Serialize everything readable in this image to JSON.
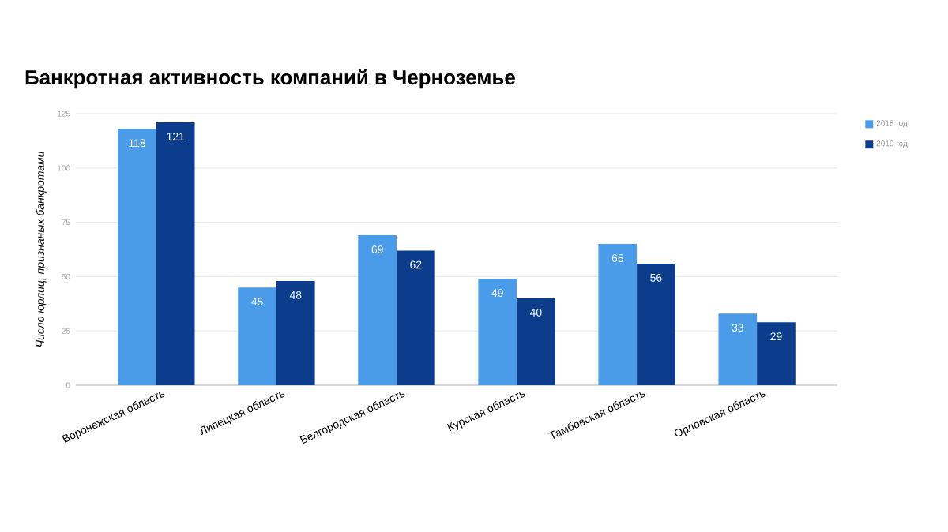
{
  "chart_data": {
    "type": "bar",
    "title": "Банкротная активность компаний в Черноземье",
    "ylabel": "Число юрлиц,  признаных банкротами",
    "categories": [
      "Воронежская область",
      "Липецкая область",
      "Белгородская область",
      "Курская область",
      "Тамбовская область",
      "Орловская область"
    ],
    "series": [
      {
        "name": "2018 год",
        "color": "#4a9be8",
        "values": [
          118,
          45,
          69,
          49,
          65,
          33
        ]
      },
      {
        "name": "2019 год",
        "color": "#0b3d8c",
        "values": [
          121,
          48,
          62,
          40,
          56,
          29
        ]
      }
    ],
    "ylim": [
      0,
      125
    ],
    "yticks": [
      0,
      25,
      50,
      75,
      100,
      125
    ],
    "grid": "y",
    "legend": "top right",
    "data_labels": true
  }
}
